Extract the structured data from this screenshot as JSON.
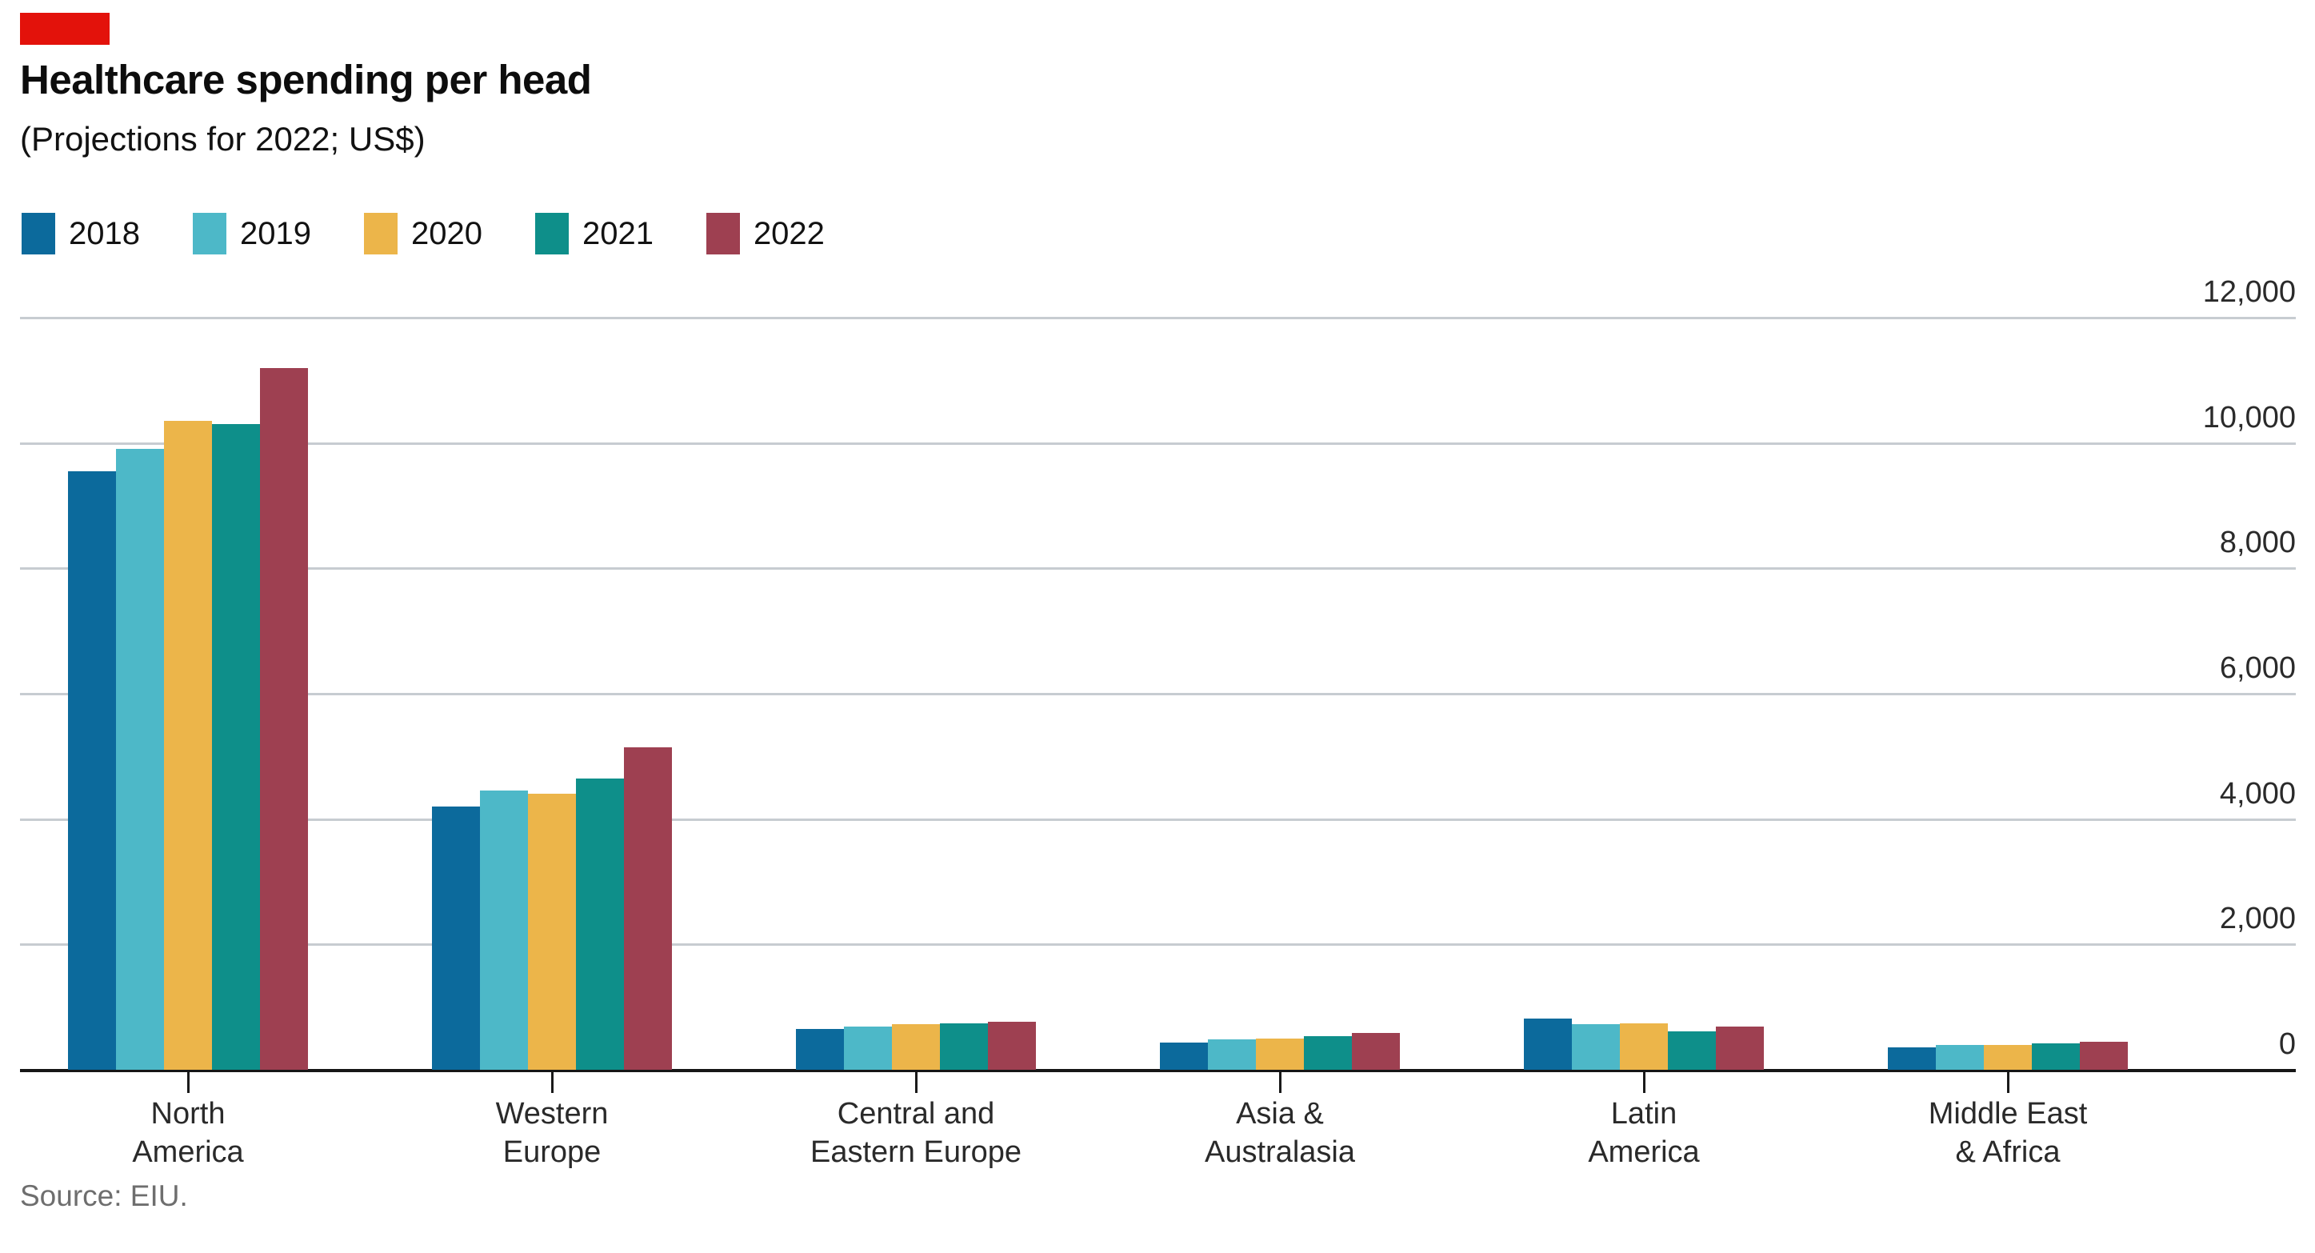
{
  "page": {
    "title": "Healthcare spending per head",
    "subtitle": "(Projections for 2022; US$)",
    "source": "Source: EIU.",
    "brand_tag_color": "#e3120b"
  },
  "colors": {
    "background": "#ffffff",
    "gridline": "#c7ccd1",
    "axis_line": "#161616",
    "text_dark": "#0d0d0d",
    "text_axis": "#2a2a2a",
    "text_source": "#6e6e6e"
  },
  "chart_data": {
    "type": "bar",
    "title": "Healthcare spending per head",
    "subtitle": "(Projections for 2022; US$)",
    "source": "Source: EIU.",
    "categories": [
      "North\nAmerica",
      "Western\nEurope",
      "Central and\nEastern Europe",
      "Asia &\nAustralasia",
      "Latin\nAmerica",
      "Middle East\n& Africa"
    ],
    "series": [
      {
        "name": "2018",
        "color": "#0c6a9c",
        "values": [
          9550,
          4200,
          650,
          430,
          820,
          360
        ]
      },
      {
        "name": "2019",
        "color": "#4db8c8",
        "values": [
          9900,
          4450,
          690,
          490,
          730,
          390
        ]
      },
      {
        "name": "2020",
        "color": "#ecb54a",
        "values": [
          10350,
          4400,
          730,
          500,
          740,
          400
        ]
      },
      {
        "name": "2021",
        "color": "#0e8f8a",
        "values": [
          10300,
          4650,
          740,
          540,
          610,
          420
        ]
      },
      {
        "name": "2022",
        "color": "#9e4051",
        "values": [
          11200,
          5150,
          770,
          590,
          690,
          450
        ]
      }
    ],
    "ylim": [
      0,
      12000
    ],
    "yticks": [
      0,
      2000,
      4000,
      6000,
      8000,
      10000,
      12000
    ],
    "ytick_labels": [
      "0",
      "2,000",
      "4,000",
      "6,000",
      "8,000",
      "10,000",
      "12,000"
    ],
    "grid": true,
    "legend_position": "top-left",
    "y_axis_side": "right"
  }
}
